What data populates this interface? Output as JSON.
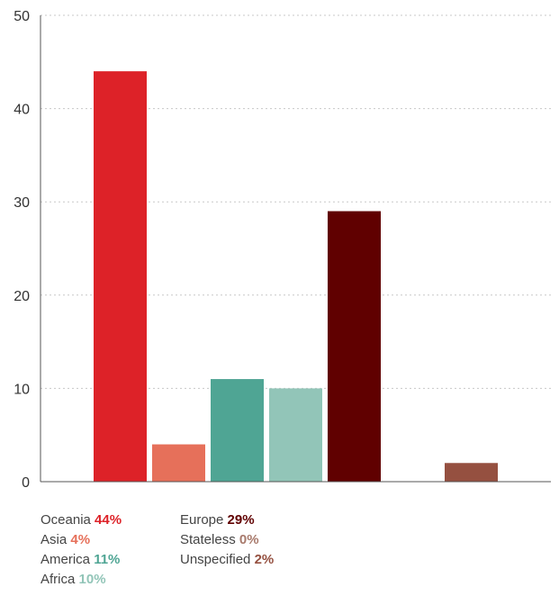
{
  "chart_data": {
    "type": "bar",
    "categories": [
      "Oceania",
      "Asia",
      "America",
      "Africa",
      "Europe",
      "Stateless",
      "Unspecified"
    ],
    "values": [
      44,
      4,
      11,
      10,
      29,
      0,
      2
    ],
    "colors": [
      "#dd2228",
      "#e6705a",
      "#4fa594",
      "#92c5b8",
      "#600000",
      "#a87a6c",
      "#955040"
    ],
    "ylim": [
      0,
      50
    ],
    "yticks": [
      0,
      10,
      20,
      30,
      40,
      50
    ],
    "grid": true,
    "legend": [
      {
        "label": "Oceania",
        "pct": "44%"
      },
      {
        "label": "Asia",
        "pct": "4%"
      },
      {
        "label": "America",
        "pct": "11%"
      },
      {
        "label": "Africa",
        "pct": "10%"
      },
      {
        "label": "Europe",
        "pct": "29%"
      },
      {
        "label": "Stateless",
        "pct": "0%"
      },
      {
        "label": "Unspecified",
        "pct": "2%"
      }
    ]
  }
}
